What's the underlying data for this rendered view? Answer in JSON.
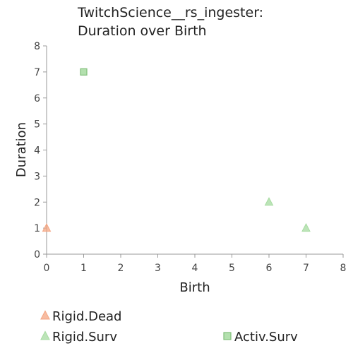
{
  "chart_data": {
    "type": "scatter",
    "title_lines": [
      "TwitchScience__rs_ingester:",
      "Duration over Birth"
    ],
    "xlabel": "Birth",
    "ylabel": "Duration",
    "xlim": [
      0,
      8
    ],
    "ylim": [
      0,
      8
    ],
    "xticks": [
      "0",
      "1",
      "2",
      "3",
      "4",
      "5",
      "6",
      "7",
      "8"
    ],
    "yticks": [
      "0",
      "1",
      "2",
      "3",
      "4",
      "5",
      "6",
      "7",
      "8"
    ],
    "grid": false,
    "legend_position": "bottom",
    "series": [
      {
        "name": "Rigid.Dead",
        "marker": "triangle",
        "color": "#f4a582",
        "points": [
          {
            "x": 0,
            "y": 1
          }
        ]
      },
      {
        "name": "Rigid.Surv",
        "marker": "triangle",
        "color": "#a6dba0",
        "points": [
          {
            "x": 6,
            "y": 2
          },
          {
            "x": 7,
            "y": 1
          }
        ]
      },
      {
        "name": "Activ.Surv",
        "marker": "square",
        "color": "#a6dba0",
        "points": [
          {
            "x": 1,
            "y": 7
          }
        ]
      }
    ]
  }
}
